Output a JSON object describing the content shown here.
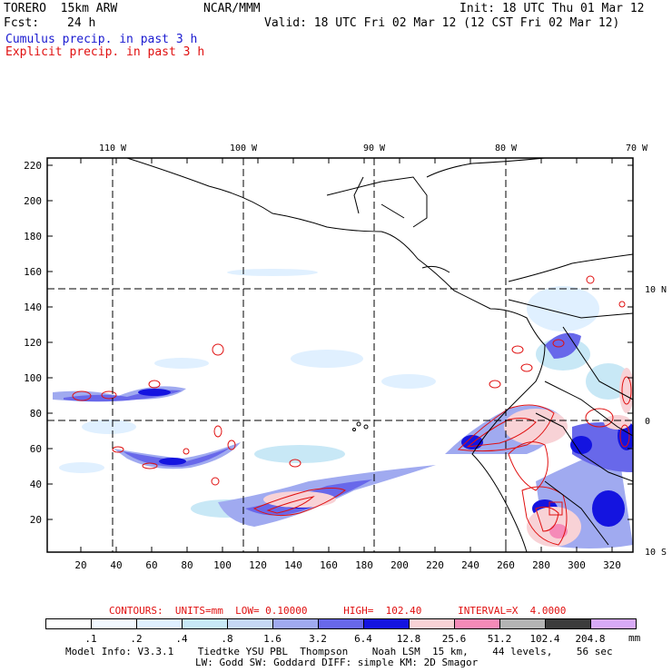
{
  "header": {
    "model": "TORERO  15km ARW",
    "org": "NCAR/MMM",
    "init": "Init: 18 UTC Thu 01 Mar 12",
    "fcst_label": "Fcst:",
    "fcst_value": "24 h",
    "valid": "Valid: 18 UTC Fri 02 Mar 12 (12 CST Fri 02 Mar 12)",
    "cumulus": "Cumulus precip. in past 3 h",
    "explicit": "Explicit precip. in past 3 h"
  },
  "map": {
    "top_lon_labels": [
      "110 W",
      "100 W",
      "90 W",
      "80 W",
      "70 W"
    ],
    "right_lat_labels": [
      "10 N",
      "0",
      "10 S"
    ],
    "y_ticks": [
      "220",
      "200",
      "180",
      "160",
      "140",
      "120",
      "100",
      "80",
      "60",
      "40",
      "20"
    ],
    "x_ticks": [
      "20",
      "40",
      "60",
      "80",
      "100",
      "120",
      "140",
      "160",
      "180",
      "200",
      "220",
      "240",
      "260",
      "280",
      "300",
      "320"
    ]
  },
  "contour_info": {
    "label": "CONTOURS:  UNITS=mm  LOW= 0.10000      HIGH=  102.40      INTERVAL=X  4.0000"
  },
  "legend": {
    "labels": [
      ".1",
      ".2",
      ".4",
      ".8",
      "1.6",
      "3.2",
      "6.4",
      "12.8",
      "25.6",
      "51.2",
      "102.4",
      "204.8"
    ],
    "unit": "mm",
    "colors": [
      "#ffffff",
      "#f2f8ff",
      "#e0f0ff",
      "#c8e8f6",
      "#c6d8f4",
      "#a0aaf0",
      "#6868ea",
      "#1414e0",
      "#f8d2d6",
      "#f58ab8",
      "#b4b4b4",
      "#3c3c3c",
      "#d8aaf6"
    ]
  },
  "footer": {
    "line1": "Model Info: V3.3.1    Tiedtke YSU PBL  Thompson    Noah LSM  15 km,    44 levels,    56 sec",
    "line2": "LW: Godd SW: Goddard DIFF: simple KM: 2D Smagor"
  }
}
